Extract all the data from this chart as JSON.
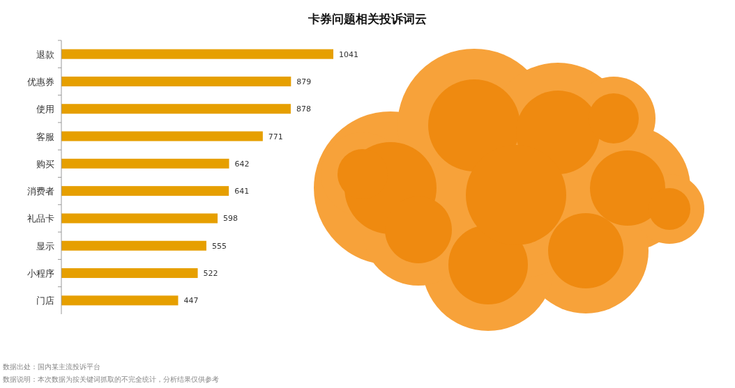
{
  "chart_data": {
    "type": "bar",
    "orientation": "horizontal",
    "title": "卡券问题相关投诉词云",
    "categories": [
      "退款",
      "优惠券",
      "使用",
      "客服",
      "购买",
      "消费者",
      "礼品卡",
      "显示",
      "小程序",
      "门店"
    ],
    "values": [
      1041,
      879,
      878,
      771,
      642,
      641,
      598,
      555,
      522,
      447
    ],
    "color": "#e69f00",
    "data_labels": true,
    "annotations": [
      "数据出处：国内某主流投诉平台",
      "数据说明：本次数据为按关键词抓取的不完全统计，分析结果仅供参考"
    ]
  }
}
